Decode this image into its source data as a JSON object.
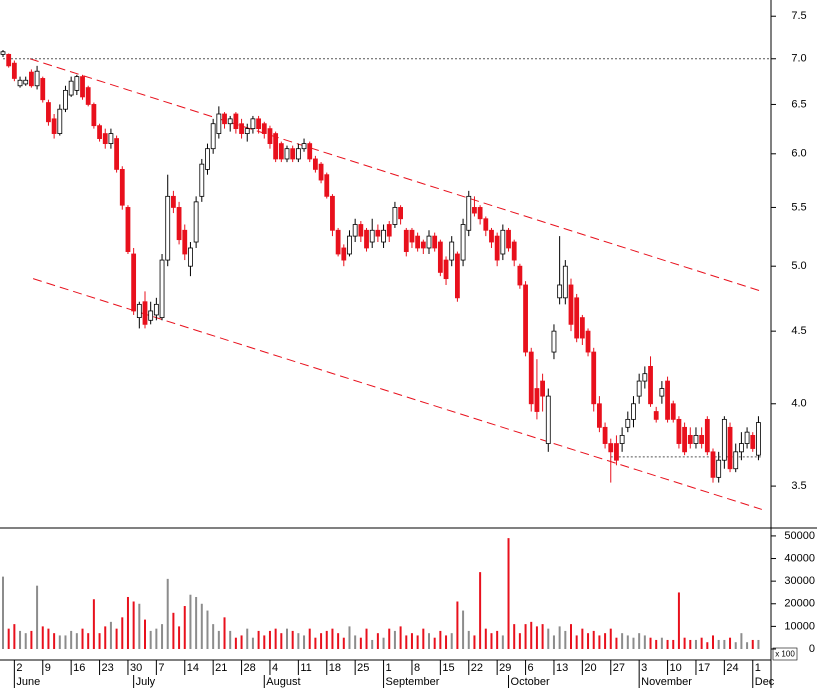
{
  "chart_data": {
    "type": "candlestick",
    "log": true,
    "ylim": [
      3.27,
      7.7
    ],
    "yticks": [
      3.5,
      {
        "value": 4,
        "label": "4.0"
      },
      4.5,
      {
        "value": 5,
        "label": "5.0"
      },
      5.5,
      {
        "value": 6,
        "label": "6.0"
      },
      6.5,
      {
        "value": 7,
        "label": "7.0"
      },
      7.5
    ],
    "up_color": "#ffffff",
    "down_color": "#e8101c",
    "volume_up_color": "#8c8c8c",
    "volume_down_color": "#e8101c",
    "volume_ylim": [
      0,
      53500
    ],
    "volume_yticks": [
      0,
      10000,
      20000,
      30000,
      40000,
      50000
    ],
    "volume_unit": "x 100",
    "categories": [
      null,
      null,
      "2",
      null,
      null,
      null,
      null,
      "9",
      null,
      null,
      null,
      null,
      "16",
      null,
      null,
      null,
      null,
      "23",
      null,
      null,
      null,
      null,
      "30",
      null,
      null,
      null,
      null,
      "7",
      null,
      null,
      null,
      null,
      "14",
      null,
      null,
      null,
      null,
      "21",
      null,
      null,
      null,
      null,
      "28",
      null,
      null,
      null,
      null,
      "4",
      null,
      null,
      null,
      null,
      "11",
      null,
      null,
      null,
      null,
      "18",
      null,
      null,
      null,
      null,
      "25",
      null,
      null,
      null,
      null,
      "1",
      null,
      null,
      null,
      null,
      "8",
      null,
      null,
      null,
      null,
      "15",
      null,
      null,
      null,
      null,
      "22",
      null,
      null,
      null,
      null,
      "29",
      null,
      null,
      null,
      null,
      "6",
      null,
      null,
      null,
      null,
      "13",
      null,
      null,
      null,
      null,
      "20",
      null,
      null,
      null,
      null,
      "27",
      null,
      null,
      null,
      null,
      "3",
      null,
      null,
      null,
      null,
      "10",
      null,
      null,
      null,
      null,
      "17",
      null,
      null,
      null,
      null,
      "24",
      null,
      null,
      null,
      null,
      "1",
      null
    ],
    "months": [
      null,
      null,
      "June",
      null,
      null,
      null,
      null,
      null,
      null,
      null,
      null,
      null,
      null,
      null,
      null,
      null,
      null,
      null,
      null,
      null,
      null,
      null,
      null,
      "July",
      null,
      null,
      null,
      null,
      null,
      null,
      null,
      null,
      null,
      null,
      null,
      null,
      null,
      null,
      null,
      null,
      null,
      null,
      null,
      null,
      null,
      null,
      "August",
      null,
      null,
      null,
      null,
      null,
      null,
      null,
      null,
      null,
      null,
      null,
      null,
      null,
      null,
      null,
      null,
      null,
      null,
      null,
      null,
      "September",
      null,
      null,
      null,
      null,
      null,
      null,
      null,
      null,
      null,
      null,
      null,
      null,
      null,
      null,
      null,
      null,
      null,
      null,
      null,
      null,
      null,
      "October",
      null,
      null,
      null,
      null,
      null,
      null,
      null,
      null,
      null,
      null,
      null,
      null,
      null,
      null,
      null,
      null,
      null,
      null,
      null,
      null,
      null,
      null,
      "November",
      null,
      null,
      null,
      null,
      null,
      null,
      null,
      null,
      null,
      null,
      null,
      null,
      null,
      null,
      null,
      null,
      null,
      null,
      null,
      "Dec",
      null
    ],
    "ohlc": [
      [
        7.05,
        7.1,
        7.02,
        7.08
      ],
      [
        7.05,
        7.06,
        6.9,
        6.92
      ],
      [
        6.95,
        6.98,
        6.75,
        6.78
      ],
      [
        6.7,
        6.8,
        6.68,
        6.76
      ],
      [
        6.72,
        6.8,
        6.7,
        6.76
      ],
      [
        6.85,
        6.88,
        6.68,
        6.7
      ],
      [
        6.7,
        6.92,
        6.66,
        6.86
      ],
      [
        6.78,
        6.8,
        6.52,
        6.55
      ],
      [
        6.52,
        6.55,
        6.28,
        6.32
      ],
      [
        6.35,
        6.4,
        6.15,
        6.2
      ],
      [
        6.2,
        6.5,
        6.18,
        6.45
      ],
      [
        6.45,
        6.7,
        6.42,
        6.65
      ],
      [
        6.6,
        6.8,
        6.58,
        6.75
      ],
      [
        6.65,
        6.82,
        6.6,
        6.8
      ],
      [
        6.8,
        6.82,
        6.55,
        6.58
      ],
      [
        6.68,
        6.7,
        6.48,
        6.5
      ],
      [
        6.5,
        6.52,
        6.25,
        6.28
      ],
      [
        6.28,
        6.3,
        6.12,
        6.15
      ],
      [
        6.2,
        6.25,
        6.05,
        6.1
      ],
      [
        6.1,
        6.25,
        6.05,
        6.2
      ],
      [
        6.15,
        6.18,
        5.82,
        5.85
      ],
      [
        5.85,
        5.88,
        5.48,
        5.52
      ],
      [
        5.5,
        5.52,
        5.1,
        5.12
      ],
      [
        5.1,
        5.15,
        4.62,
        4.65
      ],
      [
        4.6,
        4.72,
        4.52,
        4.7
      ],
      [
        4.72,
        4.8,
        4.52,
        4.55
      ],
      [
        4.58,
        4.72,
        4.55,
        4.65
      ],
      [
        4.62,
        4.75,
        4.58,
        4.7
      ],
      [
        4.6,
        5.1,
        4.58,
        5.05
      ],
      [
        5.05,
        5.8,
        5.0,
        5.6
      ],
      [
        5.6,
        5.65,
        5.45,
        5.5
      ],
      [
        5.5,
        5.55,
        5.18,
        5.22
      ],
      [
        5.3,
        5.35,
        5.05,
        5.1
      ],
      [
        5.0,
        5.2,
        4.92,
        5.15
      ],
      [
        5.2,
        5.6,
        5.15,
        5.55
      ],
      [
        5.6,
        5.95,
        5.55,
        5.9
      ],
      [
        5.85,
        6.1,
        5.8,
        6.05
      ],
      [
        6.05,
        6.35,
        6.0,
        6.3
      ],
      [
        6.2,
        6.48,
        6.15,
        6.4
      ],
      [
        6.4,
        6.42,
        6.25,
        6.3
      ],
      [
        6.3,
        6.38,
        6.22,
        6.35
      ],
      [
        6.4,
        6.42,
        6.2,
        6.25
      ],
      [
        6.3,
        6.35,
        6.15,
        6.2
      ],
      [
        6.2,
        6.3,
        6.12,
        6.25
      ],
      [
        6.25,
        6.38,
        6.2,
        6.35
      ],
      [
        6.35,
        6.38,
        6.2,
        6.25
      ],
      [
        6.3,
        6.32,
        6.15,
        6.2
      ],
      [
        6.25,
        6.28,
        6.05,
        6.1
      ],
      [
        6.2,
        6.22,
        5.92,
        5.95
      ],
      [
        6.1,
        6.12,
        5.92,
        5.95
      ],
      [
        5.95,
        6.08,
        5.92,
        6.05
      ],
      [
        6.05,
        6.08,
        5.92,
        5.95
      ],
      [
        5.95,
        6.1,
        5.92,
        6.05
      ],
      [
        6.05,
        6.15,
        6.02,
        6.1
      ],
      [
        6.1,
        6.12,
        5.92,
        5.95
      ],
      [
        5.95,
        5.98,
        5.82,
        5.85
      ],
      [
        5.9,
        5.92,
        5.72,
        5.75
      ],
      [
        5.8,
        5.82,
        5.58,
        5.6
      ],
      [
        5.6,
        5.62,
        5.25,
        5.3
      ],
      [
        5.3,
        5.32,
        5.08,
        5.1
      ],
      [
        5.15,
        5.18,
        5.0,
        5.05
      ],
      [
        5.1,
        5.3,
        5.08,
        5.25
      ],
      [
        5.25,
        5.4,
        5.2,
        5.35
      ],
      [
        5.35,
        5.38,
        5.2,
        5.25
      ],
      [
        5.3,
        5.32,
        5.12,
        5.15
      ],
      [
        5.2,
        5.4,
        5.15,
        5.3
      ],
      [
        5.3,
        5.35,
        5.2,
        5.25
      ],
      [
        5.2,
        5.35,
        5.15,
        5.3
      ],
      [
        5.35,
        5.38,
        5.2,
        5.25
      ],
      [
        5.35,
        5.55,
        5.32,
        5.5
      ],
      [
        5.5,
        5.52,
        5.35,
        5.4
      ],
      [
        5.3,
        5.32,
        5.08,
        5.12
      ],
      [
        5.3,
        5.32,
        5.15,
        5.2
      ],
      [
        5.25,
        5.28,
        5.12,
        5.15
      ],
      [
        5.2,
        5.22,
        5.1,
        5.15
      ],
      [
        5.15,
        5.3,
        5.1,
        5.25
      ],
      [
        5.25,
        5.28,
        5.12,
        5.15
      ],
      [
        5.2,
        5.22,
        4.92,
        4.95
      ],
      [
        5.05,
        5.08,
        4.85,
        4.9
      ],
      [
        5.05,
        5.25,
        5.0,
        5.2
      ],
      [
        5.1,
        5.12,
        4.72,
        4.75
      ],
      [
        5.05,
        5.4,
        5.0,
        5.35
      ],
      [
        5.3,
        5.65,
        5.25,
        5.6
      ],
      [
        5.5,
        5.6,
        5.42,
        5.45
      ],
      [
        5.5,
        5.52,
        5.35,
        5.4
      ],
      [
        5.4,
        5.42,
        5.25,
        5.3
      ],
      [
        5.3,
        5.32,
        5.15,
        5.2
      ],
      [
        5.25,
        5.28,
        5.0,
        5.05
      ],
      [
        5.1,
        5.35,
        5.05,
        5.3
      ],
      [
        5.3,
        5.32,
        5.12,
        5.15
      ],
      [
        5.2,
        5.22,
        5.0,
        5.05
      ],
      [
        5.0,
        5.02,
        4.82,
        4.85
      ],
      [
        4.85,
        4.88,
        4.32,
        4.35
      ],
      [
        4.35,
        4.38,
        3.95,
        4.0
      ],
      [
        4.1,
        4.3,
        3.9,
        3.95
      ],
      [
        4.15,
        4.2,
        3.95,
        4.05
      ],
      [
        3.75,
        4.1,
        3.7,
        4.05
      ],
      [
        4.35,
        4.55,
        4.3,
        4.5
      ],
      [
        4.75,
        5.25,
        4.7,
        4.85
      ],
      [
        4.75,
        5.05,
        4.7,
        5.0
      ],
      [
        4.85,
        4.9,
        4.5,
        4.55
      ],
      [
        4.75,
        4.78,
        4.42,
        4.45
      ],
      [
        4.6,
        4.62,
        4.4,
        4.45
      ],
      [
        4.5,
        4.52,
        4.32,
        4.35
      ],
      [
        4.35,
        4.38,
        3.95,
        4.0
      ],
      [
        4.0,
        4.05,
        3.82,
        3.85
      ],
      [
        3.85,
        3.88,
        3.72,
        3.75
      ],
      [
        3.75,
        3.78,
        3.52,
        3.7
      ],
      [
        3.75,
        3.8,
        3.62,
        3.65
      ],
      [
        3.75,
        3.85,
        3.7,
        3.8
      ],
      [
        3.85,
        3.95,
        3.82,
        3.9
      ],
      [
        3.9,
        4.05,
        3.85,
        4.0
      ],
      [
        4.05,
        4.2,
        4.0,
        4.15
      ],
      [
        4.15,
        4.25,
        4.1,
        4.2
      ],
      [
        4.25,
        4.32,
        3.98,
        4.0
      ],
      [
        3.95,
        3.98,
        3.88,
        3.9
      ],
      [
        4.05,
        4.15,
        4.0,
        4.1
      ],
      [
        4.15,
        4.18,
        3.88,
        3.9
      ],
      [
        4.0,
        4.02,
        3.88,
        3.9
      ],
      [
        3.9,
        3.92,
        3.72,
        3.75
      ],
      [
        3.85,
        3.88,
        3.68,
        3.7
      ],
      [
        3.8,
        3.85,
        3.72,
        3.75
      ],
      [
        3.75,
        3.85,
        3.72,
        3.8
      ],
      [
        3.8,
        3.85,
        3.72,
        3.75
      ],
      [
        3.9,
        3.92,
        3.68,
        3.7
      ],
      [
        3.7,
        3.72,
        3.52,
        3.55
      ],
      [
        3.55,
        3.7,
        3.52,
        3.65
      ],
      [
        3.65,
        3.92,
        3.6,
        3.9
      ],
      [
        3.85,
        3.88,
        3.58,
        3.6
      ],
      [
        3.6,
        3.75,
        3.58,
        3.7
      ],
      [
        3.7,
        3.82,
        3.65,
        3.75
      ],
      [
        3.75,
        3.85,
        3.72,
        3.82
      ],
      [
        3.8,
        3.82,
        3.7,
        3.72
      ],
      [
        3.68,
        3.92,
        3.65,
        3.88
      ]
    ],
    "volume": [
      32000,
      9000,
      11000,
      8000,
      7000,
      8000,
      28000,
      10000,
      9000,
      7000,
      6000,
      6000,
      8000,
      7000,
      9000,
      7000,
      22000,
      7000,
      10000,
      12000,
      9000,
      14000,
      23000,
      21000,
      20000,
      13000,
      8000,
      9000,
      11000,
      31000,
      16000,
      10000,
      19000,
      24000,
      23000,
      20000,
      17000,
      11000,
      8000,
      14000,
      8000,
      5000,
      6000,
      9000,
      5000,
      8000,
      6000,
      8000,
      9000,
      7000,
      9000,
      8000,
      7000,
      6000,
      9000,
      5000,
      7000,
      8000,
      9000,
      7000,
      5000,
      10000,
      6000,
      5000,
      9000,
      4000,
      7000,
      5000,
      9000,
      8000,
      10000,
      6000,
      7000,
      6000,
      9000,
      7000,
      5000,
      8000,
      6000,
      7000,
      21000,
      17000,
      8000,
      6000,
      34000,
      9000,
      7000,
      8000,
      6000,
      49000,
      11000,
      7000,
      11000,
      12000,
      10000,
      11000,
      9000,
      6000,
      10000,
      8000,
      11000,
      6000,
      9000,
      7000,
      8000,
      6000,
      7000,
      9000,
      5000,
      7000,
      6000,
      5000,
      7000,
      6000,
      5000,
      4000,
      5000,
      4000,
      4000,
      25000,
      5000,
      4000,
      4000,
      5000,
      3000,
      6000,
      4000,
      4000,
      5000,
      3000,
      7000,
      3000,
      4000,
      4000
    ],
    "lines": [
      {
        "x": [
          4.75,
          133.6
        ],
        "y": [
          7.0,
          4.8
        ],
        "style": "dash",
        "color": "#e8101c"
      },
      {
        "x": [
          5.3,
          133.6
        ],
        "y": [
          4.9,
          3.37
        ],
        "style": "dash",
        "color": "#e8101c"
      },
      {
        "x": [
          0,
          135.2
        ],
        "y": [
          7.0,
          7.0
        ],
        "style": "dot",
        "color": "#555555"
      },
      {
        "x": [
          107,
          133.6
        ],
        "y": [
          3.67,
          3.67
        ],
        "style": "dot",
        "color": "#555555"
      }
    ]
  }
}
